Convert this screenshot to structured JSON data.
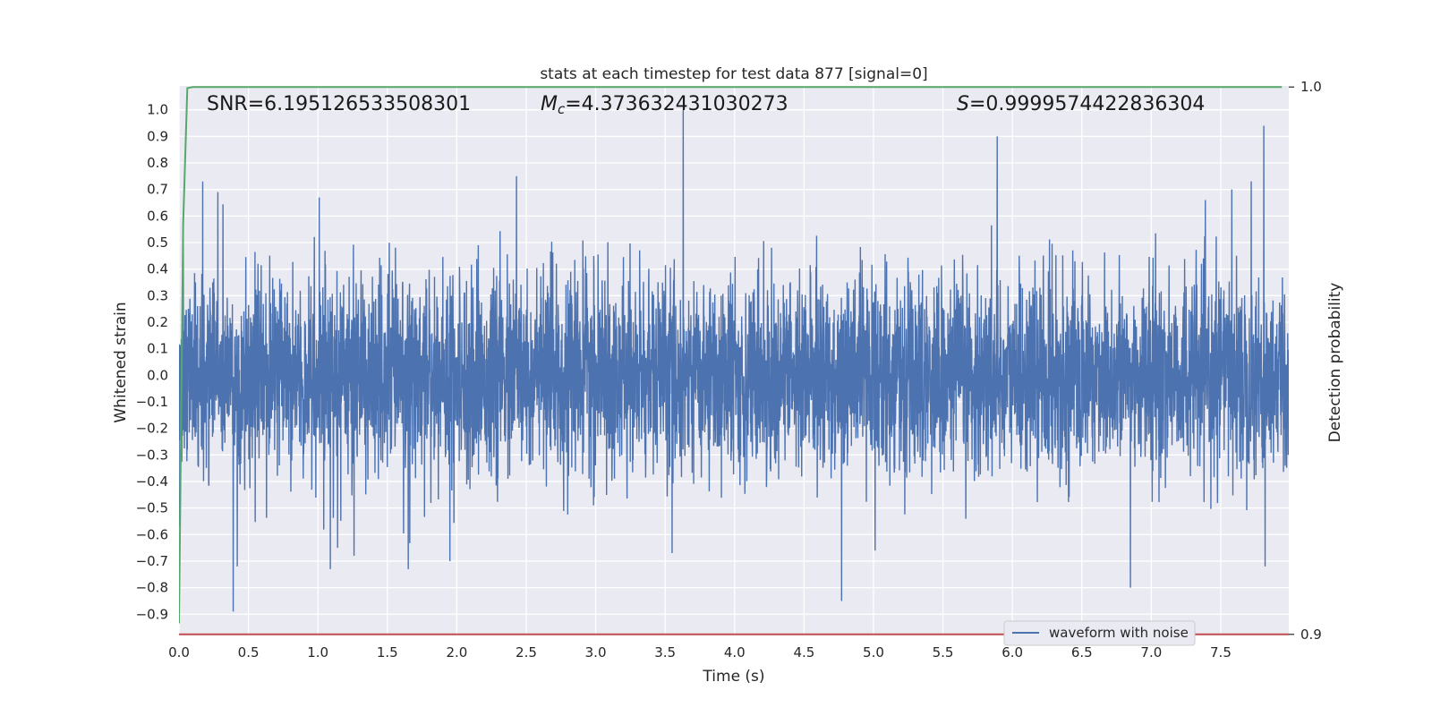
{
  "chart_data": {
    "type": "line",
    "title": "stats at each timestep for test data 877 [signal=0]",
    "xlabel": "Time (s)",
    "ylabel": "Whitened strain",
    "y2label": "Detection probability",
    "xlim": [
      0.0,
      7.99
    ],
    "ylim": [
      -0.98,
      1.09
    ],
    "y2lim": [
      0.8998,
      1.0002
    ],
    "x_ticks": [
      "0.0",
      "0.5",
      "1.0",
      "1.5",
      "2.0",
      "2.5",
      "3.0",
      "3.5",
      "4.0",
      "4.5",
      "5.0",
      "5.5",
      "6.0",
      "6.5",
      "7.0",
      "7.5"
    ],
    "y_ticks": [
      "1.0",
      "0.9",
      "0.8",
      "0.7",
      "0.6",
      "0.5",
      "0.4",
      "0.3",
      "0.2",
      "0.1",
      "0.0",
      "−0.1",
      "−0.2",
      "−0.3",
      "−0.4",
      "−0.5",
      "−0.6",
      "−0.7",
      "−0.8",
      "−0.9"
    ],
    "y2_ticks": [
      "1.0",
      "0.9"
    ],
    "grid": true,
    "legend_position": "lower-right",
    "annotations": {
      "snr": "SNR=6.195126533508301",
      "mc_symbol": "M",
      "mc_sub": "c",
      "mc_value": "=4.373632431030273",
      "s_symbol": "S",
      "s_value": "=0.9999574422836304"
    },
    "series": [
      {
        "name": "waveform with noise",
        "axis": "left",
        "color": "#4c72b0",
        "description": "noise-dominated whitened strain, amplitude mostly within ±0.45",
        "spikes": [
          {
            "x": 0.0,
            "y": -0.57
          },
          {
            "x": 0.03,
            "y": 0.57
          },
          {
            "x": 0.17,
            "y": 0.73
          },
          {
            "x": 0.28,
            "y": 0.69
          },
          {
            "x": 0.39,
            "y": -0.89
          },
          {
            "x": 0.42,
            "y": -0.72
          },
          {
            "x": 1.01,
            "y": 0.67
          },
          {
            "x": 1.09,
            "y": -0.73
          },
          {
            "x": 1.26,
            "y": -0.68
          },
          {
            "x": 1.65,
            "y": -0.73
          },
          {
            "x": 1.95,
            "y": -0.7
          },
          {
            "x": 2.43,
            "y": 0.75
          },
          {
            "x": 3.55,
            "y": -0.67
          },
          {
            "x": 3.63,
            "y": 1.0
          },
          {
            "x": 4.77,
            "y": -0.85
          },
          {
            "x": 5.89,
            "y": 0.9
          },
          {
            "x": 6.85,
            "y": -0.8
          },
          {
            "x": 7.58,
            "y": 0.7
          },
          {
            "x": 7.72,
            "y": 0.73
          },
          {
            "x": 7.81,
            "y": 0.94
          },
          {
            "x": 7.82,
            "y": -0.72
          }
        ]
      },
      {
        "name": "",
        "axis": "right",
        "color": "#55a868",
        "x": [
          0.0,
          0.03,
          0.06,
          0.1,
          0.5,
          7.94
        ],
        "values": [
          0.902,
          0.975,
          0.9998,
          1.0,
          1.0,
          1.0
        ]
      },
      {
        "name": "",
        "axis": "right",
        "color": "#c44e52",
        "x": [
          0.0,
          7.99
        ],
        "values": [
          0.9,
          0.9
        ]
      }
    ]
  }
}
